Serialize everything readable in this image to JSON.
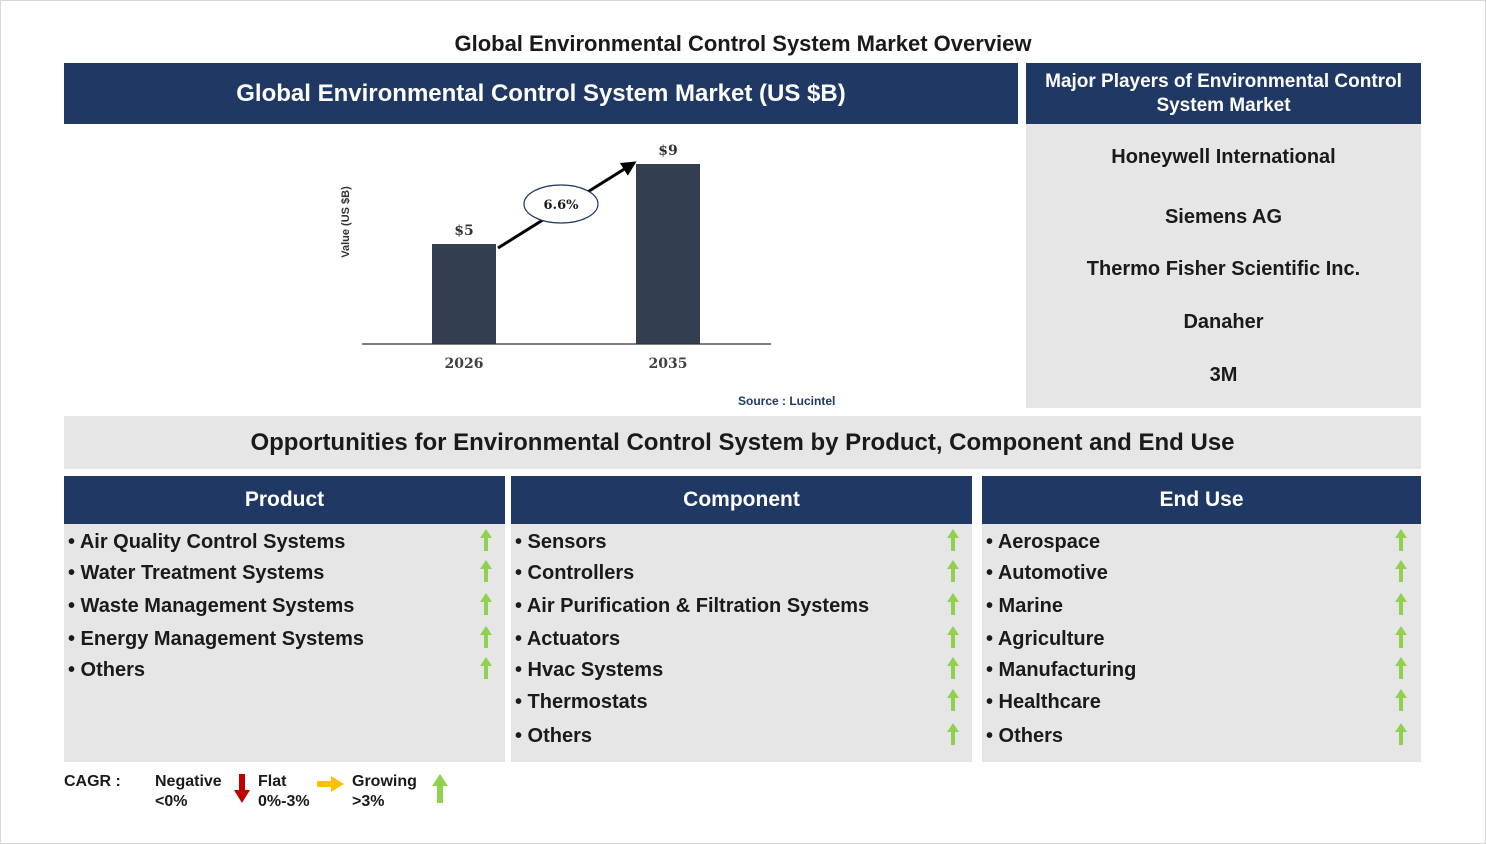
{
  "title": "Global Environmental Control System Market Overview",
  "chart_panel": {
    "header": "Global Environmental Control System Market (US $B)",
    "source": "Source : Lucintel"
  },
  "chart_data": {
    "type": "bar",
    "title": "Global Environmental Control System Market (US $B)",
    "categories": [
      "2026",
      "2035"
    ],
    "values": [
      5,
      9
    ],
    "value_labels": [
      "$5",
      "$9"
    ],
    "ylabel": "Value (US $B)",
    "xlabel": "",
    "ylim": [
      0,
      9
    ],
    "grid": false,
    "bar_color": "#333f50",
    "cagr_label": "6.6%"
  },
  "players": {
    "header": "Major Players of Environmental Control System Market",
    "items": [
      "Honeywell International",
      "Siemens AG",
      "Thermo Fisher Scientific Inc.",
      "Danaher",
      "3M"
    ]
  },
  "opportunities": {
    "header": "Opportunities for Environmental Control System by Product, Component and End Use",
    "columns": [
      {
        "title": "Product",
        "items": [
          "• Air Quality Control Systems",
          "• Water Treatment Systems",
          "• Waste Management Systems",
          "• Energy Management Systems",
          "• Others"
        ],
        "trend": "growing"
      },
      {
        "title": "Component",
        "items": [
          "• Sensors",
          "• Controllers",
          "• Air Purification & Filtration Systems",
          "• Actuators",
          "• Hvac Systems",
          "• Thermostats",
          "• Others"
        ],
        "trend": "growing"
      },
      {
        "title": "End Use",
        "items": [
          "• Aerospace",
          "• Automotive",
          "• Marine",
          "• Agriculture",
          "• Manufacturing",
          "• Healthcare",
          "• Others"
        ],
        "trend": "growing"
      }
    ]
  },
  "legend": {
    "label": "CAGR  :",
    "negative": {
      "name": "Negative",
      "range": "<0%",
      "color": "#c00000",
      "icon": "down-arrow-icon"
    },
    "flat": {
      "name": "Flat",
      "range": "0%-3%",
      "color": "#ffc000",
      "icon": "right-arrow-icon"
    },
    "growing": {
      "name": "Growing",
      "range": ">3%",
      "color": "#92d050",
      "icon": "up-arrow-icon"
    }
  }
}
